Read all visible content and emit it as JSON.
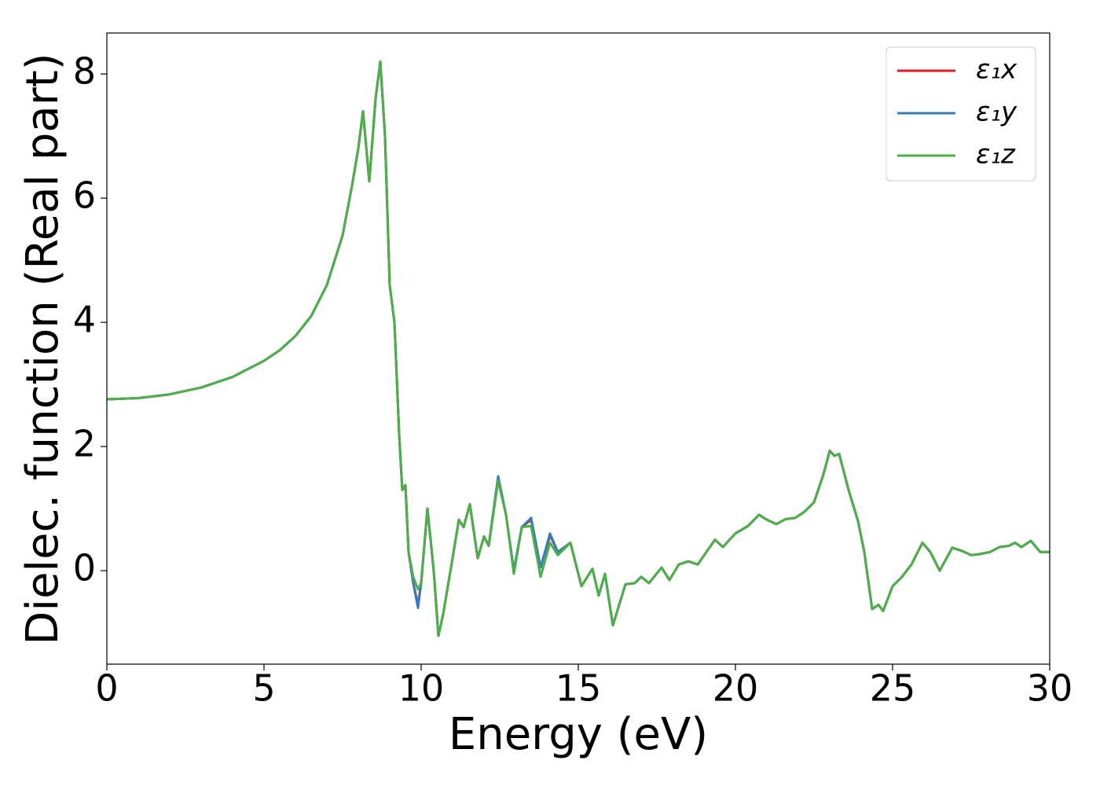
{
  "chart_data": {
    "type": "line",
    "xlabel": "Energy (eV)",
    "ylabel": "Dielec. function (Real part)",
    "xlim": [
      0,
      30
    ],
    "ylim": [
      -1.506,
      8.66
    ],
    "xticks": [
      0,
      5,
      10,
      15,
      20,
      25,
      30
    ],
    "yticks": [
      0,
      2,
      4,
      6,
      8
    ],
    "legend": "upper right",
    "x": [
      0,
      1,
      2,
      3,
      4,
      5,
      5.5,
      6,
      6.5,
      7,
      7.5,
      7.8,
      8.0,
      8.15,
      8.35,
      8.55,
      8.7,
      8.85,
      9.0,
      9.15,
      9.3,
      9.4,
      9.5,
      9.6,
      9.75,
      9.9,
      10.0,
      10.2,
      10.4,
      10.55,
      10.7,
      11.0,
      11.2,
      11.35,
      11.55,
      11.8,
      12.0,
      12.15,
      12.45,
      12.7,
      12.95,
      13.2,
      13.5,
      13.8,
      14.1,
      14.35,
      14.75,
      15.1,
      15.45,
      15.65,
      15.85,
      16.1,
      16.5,
      16.8,
      17.0,
      17.25,
      17.65,
      17.9,
      18.2,
      18.5,
      18.8,
      19.35,
      19.6,
      20.0,
      20.4,
      20.75,
      21.0,
      21.3,
      21.6,
      21.9,
      22.2,
      22.5,
      22.8,
      23.0,
      23.15,
      23.3,
      23.6,
      23.9,
      24.1,
      24.35,
      24.55,
      24.7,
      25.0,
      25.3,
      25.6,
      25.95,
      26.2,
      26.5,
      26.9,
      27.2,
      27.5,
      27.8,
      28.1,
      28.4,
      28.7,
      28.9,
      29.1,
      29.4,
      29.7,
      30.0
    ],
    "series": [
      {
        "name": "ε₁x",
        "color": "#e41a1c",
        "values": [
          2.76,
          2.78,
          2.84,
          2.95,
          3.12,
          3.38,
          3.55,
          3.78,
          4.1,
          4.6,
          5.4,
          6.2,
          6.8,
          7.4,
          6.27,
          7.6,
          8.2,
          7.0,
          4.6,
          4.0,
          2.2,
          1.3,
          1.38,
          0.3,
          -0.2,
          -0.55,
          -0.2,
          1.0,
          0.0,
          -1.05,
          -0.7,
          0.2,
          0.82,
          0.7,
          1.07,
          0.2,
          0.55,
          0.4,
          1.5,
          0.9,
          0.0,
          0.7,
          0.82,
          0.05,
          0.57,
          0.3,
          0.45,
          -0.25,
          0.03,
          -0.4,
          -0.05,
          -0.88,
          -0.22,
          -0.2,
          -0.1,
          -0.2,
          0.05,
          -0.15,
          0.1,
          0.15,
          0.1,
          0.5,
          0.38,
          0.6,
          0.72,
          0.9,
          0.82,
          0.75,
          0.83,
          0.85,
          0.95,
          1.1,
          1.55,
          1.93,
          1.85,
          1.88,
          1.3,
          0.8,
          0.3,
          -0.62,
          -0.55,
          -0.65,
          -0.25,
          -0.1,
          0.1,
          0.45,
          0.3,
          0.0,
          0.37,
          0.32,
          0.25,
          0.27,
          0.3,
          0.38,
          0.4,
          0.45,
          0.38,
          0.48,
          0.3,
          0.3
        ]
      },
      {
        "name": "ε₁y",
        "color": "#377eb8",
        "values": [
          2.76,
          2.78,
          2.84,
          2.95,
          3.12,
          3.38,
          3.55,
          3.78,
          4.1,
          4.6,
          5.4,
          6.2,
          6.8,
          7.4,
          6.27,
          7.6,
          8.2,
          7.0,
          4.6,
          4.0,
          2.2,
          1.3,
          1.38,
          0.3,
          -0.2,
          -0.6,
          -0.2,
          1.0,
          0.0,
          -1.05,
          -0.7,
          0.2,
          0.82,
          0.7,
          1.07,
          0.2,
          0.55,
          0.4,
          1.52,
          0.9,
          0.0,
          0.7,
          0.85,
          0.05,
          0.6,
          0.3,
          0.45,
          -0.25,
          0.03,
          -0.4,
          -0.05,
          -0.88,
          -0.22,
          -0.2,
          -0.1,
          -0.2,
          0.05,
          -0.15,
          0.1,
          0.15,
          0.1,
          0.5,
          0.38,
          0.6,
          0.72,
          0.9,
          0.82,
          0.75,
          0.83,
          0.85,
          0.95,
          1.1,
          1.55,
          1.93,
          1.85,
          1.88,
          1.3,
          0.8,
          0.3,
          -0.62,
          -0.55,
          -0.65,
          -0.25,
          -0.1,
          0.1,
          0.45,
          0.3,
          0.0,
          0.37,
          0.32,
          0.25,
          0.27,
          0.3,
          0.38,
          0.4,
          0.45,
          0.38,
          0.48,
          0.3,
          0.3
        ]
      },
      {
        "name": "ε₁z",
        "color": "#4daf4a",
        "values": [
          2.76,
          2.78,
          2.84,
          2.95,
          3.12,
          3.38,
          3.55,
          3.78,
          4.1,
          4.6,
          5.4,
          6.2,
          6.8,
          7.4,
          6.27,
          7.6,
          8.2,
          7.0,
          4.6,
          4.0,
          2.2,
          1.3,
          1.38,
          0.3,
          -0.1,
          -0.3,
          -0.2,
          1.0,
          0.0,
          -1.05,
          -0.7,
          0.2,
          0.82,
          0.7,
          1.07,
          0.2,
          0.55,
          0.4,
          1.45,
          0.9,
          -0.05,
          0.7,
          0.72,
          -0.1,
          0.45,
          0.25,
          0.45,
          -0.25,
          0.03,
          -0.4,
          -0.05,
          -0.88,
          -0.22,
          -0.2,
          -0.1,
          -0.2,
          0.05,
          -0.15,
          0.1,
          0.15,
          0.1,
          0.5,
          0.38,
          0.6,
          0.72,
          0.9,
          0.82,
          0.75,
          0.83,
          0.85,
          0.95,
          1.1,
          1.55,
          1.93,
          1.85,
          1.88,
          1.3,
          0.8,
          0.3,
          -0.62,
          -0.55,
          -0.65,
          -0.25,
          -0.1,
          0.1,
          0.45,
          0.3,
          0.0,
          0.37,
          0.32,
          0.25,
          0.27,
          0.3,
          0.38,
          0.4,
          0.45,
          0.38,
          0.48,
          0.3,
          0.3
        ]
      }
    ]
  }
}
